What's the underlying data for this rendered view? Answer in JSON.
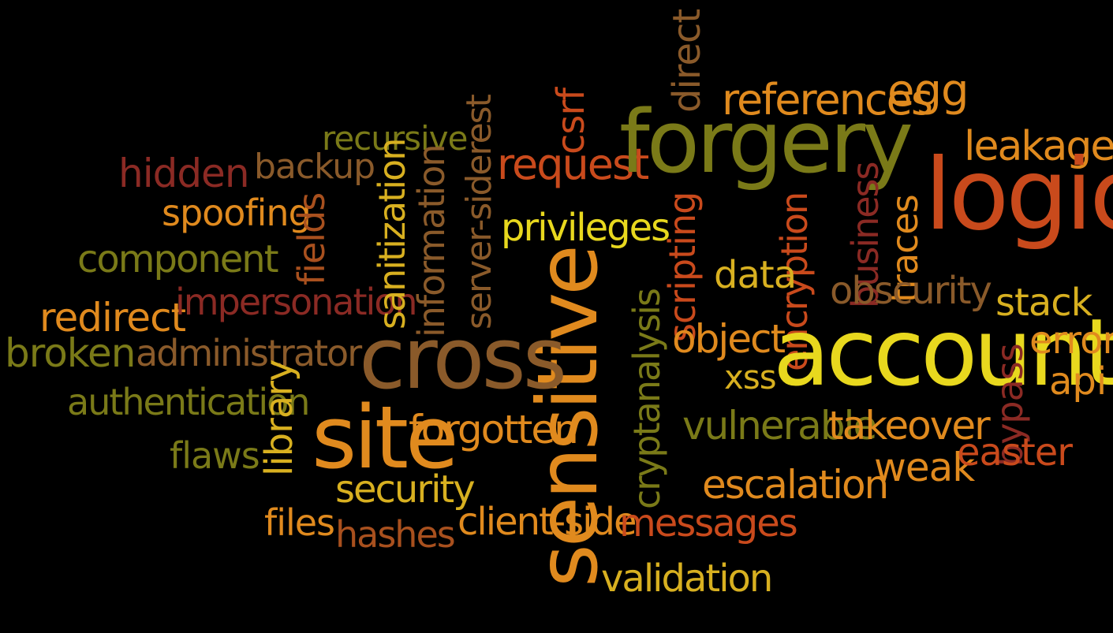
{
  "words": {
    "hidden": "hidden",
    "backup": "backup",
    "recursive": "recursive",
    "sidedrest": "server-siderest",
    "request": "request",
    "csrf": "csrf",
    "forgery": "forgery",
    "direct": "direct",
    "references": "references",
    "egg": "egg",
    "leakage": "leakage",
    "spoofing": "spoofing",
    "fields": "fields",
    "sanitization": "sanitization",
    "information": "information",
    "privileges": "privileges",
    "scripting": "scripting",
    "encryption": "encryption",
    "business": "business",
    "traces": "traces",
    "logic": "logic",
    "component": "component",
    "data": "data",
    "obscurity": "obscurity",
    "redirect": "redirect",
    "impersonation": "impersonation",
    "sensitive": "sensitive",
    "cryptanalysis": "cryptanalysis",
    "stack": "stack",
    "broken": "broken",
    "administrator": "administrator",
    "cross": "cross",
    "object": "object",
    "account": "account",
    "error": "error",
    "bypass": "bypass",
    "api": "api",
    "xss": "xss",
    "authentication": "authentication",
    "site": "site",
    "forgotten": "forgotten",
    "vulnerable": "vulnerable",
    "takeover": "takeover",
    "flaws": "flaws",
    "library": "library",
    "weak": "weak",
    "easter": "easter",
    "security": "security",
    "escalation": "escalation",
    "files": "files",
    "hashes": "hashes",
    "clientside": "client-side",
    "messages": "messages",
    "validation": "validation"
  },
  "colors": {
    "background": "#000000",
    "dark_red": "#8b2a24",
    "red_orange": "#c94a1c",
    "orange": "#e08a1e",
    "light_orange": "#f0a63a",
    "gold": "#d8b020",
    "yellow": "#e8d81e",
    "olive": "#7a7a18",
    "brown": "#8a5a2a",
    "tan": "#c08a3a",
    "rust": "#a8501e"
  }
}
